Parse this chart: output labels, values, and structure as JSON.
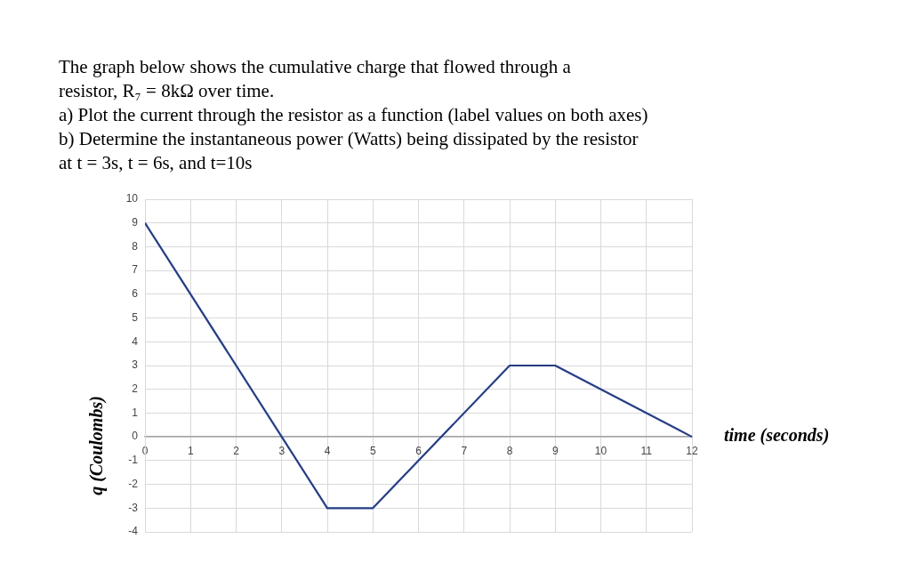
{
  "chart_data": {
    "type": "line",
    "title": "The graph below shows the cumulative charge that flowed through a\nresistor, R₇ = 8kΩ over time.\na) Plot the current through the resistor as a function (label values on both axes)\nb) Determine the instantaneous power (Watts) being dissipated by the resistor\nat t = 3s, t = 6s, and t=10s",
    "xlabel": "time (seconds)",
    "ylabel": "q (Coulombs)",
    "series": [
      {
        "color": "#1f3c99",
        "x": [
          0,
          3,
          4,
          5,
          8,
          9,
          12
        ],
        "values": [
          9,
          0,
          -3,
          -3,
          3,
          3,
          0
        ]
      }
    ],
    "xlim": [
      0,
      12
    ],
    "xticks": [
      0,
      1,
      2,
      3,
      4,
      5,
      6,
      7,
      8,
      9,
      10,
      11,
      12
    ],
    "ylim": [
      -4,
      10
    ],
    "yticks": [
      -4,
      -3,
      -2,
      -1,
      0,
      1,
      2,
      3,
      4,
      5,
      6,
      7,
      8,
      9,
      10
    ],
    "grid": true,
    "legend": false,
    "marker": "none",
    "line_style": "solid"
  }
}
